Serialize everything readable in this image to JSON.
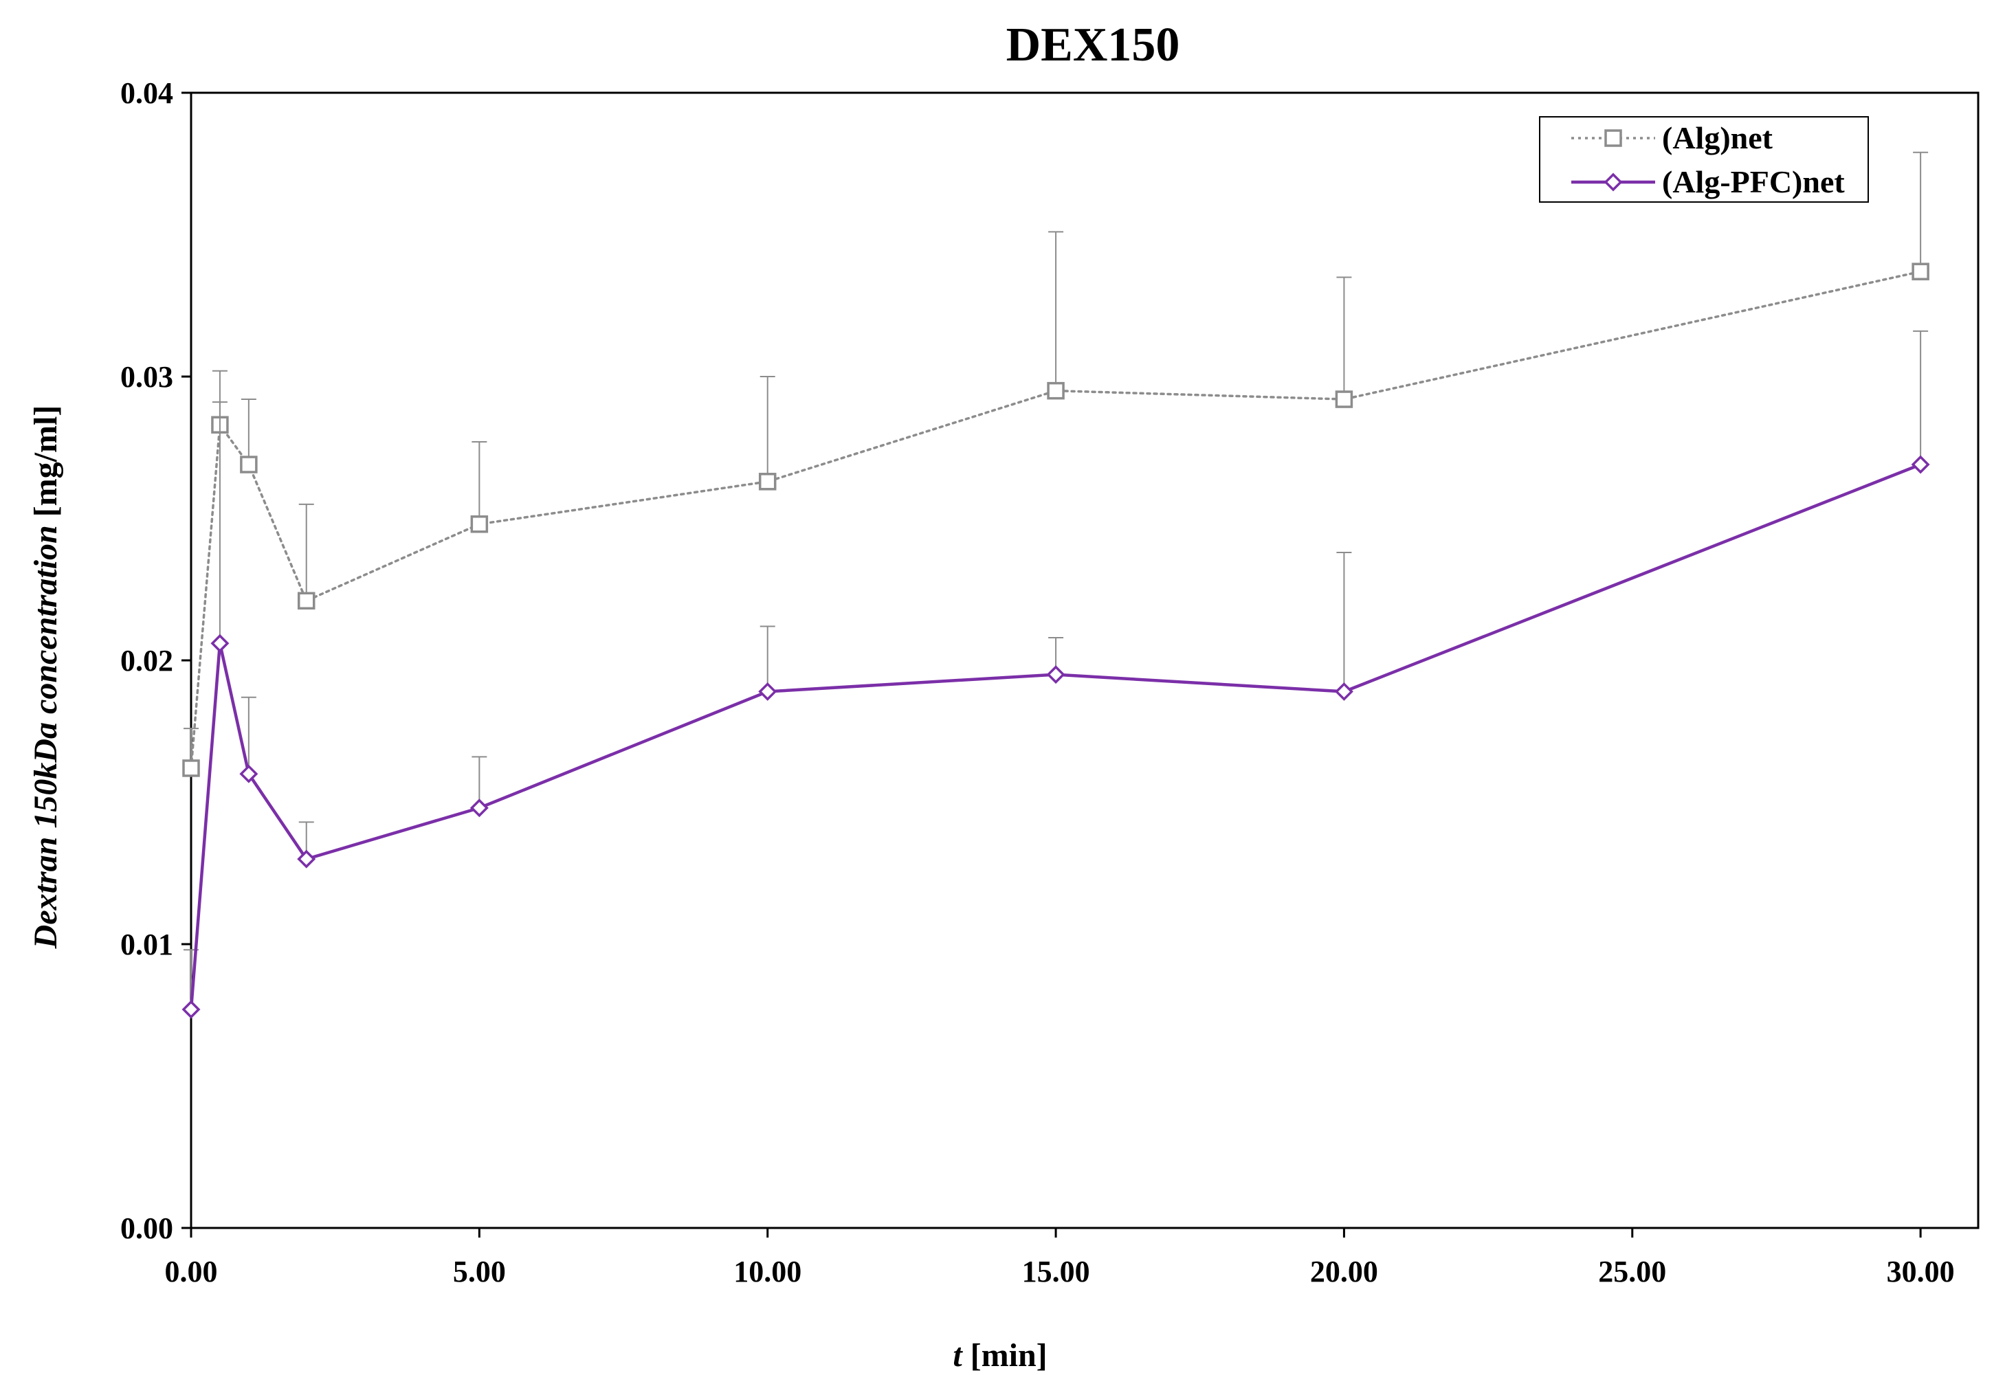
{
  "chart_data": {
    "type": "line",
    "title": "DEX150",
    "xlabel_italic": "t",
    "xlabel_rest": " [min]",
    "ylabel_italic": "Dextran 150kDa concentration",
    "ylabel_rest": " [mg/ml]",
    "xlim": [
      0,
      31
    ],
    "ylim": [
      0,
      0.04
    ],
    "x_ticks": [
      0,
      5,
      10,
      15,
      20,
      25,
      30
    ],
    "x_tick_labels": [
      "0.00",
      "5.00",
      "10.00",
      "15.00",
      "20.00",
      "25.00",
      "30.00"
    ],
    "y_ticks": [
      0,
      0.01,
      0.02,
      0.03,
      0.04
    ],
    "y_tick_labels": [
      "0.00",
      "0.01",
      "0.02",
      "0.03",
      "0.04"
    ],
    "grid": false,
    "legend_position": "top-right",
    "series": [
      {
        "name": "(Alg)net",
        "color": "#8c8c8c",
        "line_style": "dotted",
        "marker": "square",
        "x": [
          0,
          0.5,
          1,
          2,
          5,
          10,
          15,
          20,
          30
        ],
        "y": [
          0.0162,
          0.0283,
          0.0269,
          0.0221,
          0.0248,
          0.0263,
          0.0295,
          0.0292,
          0.0337
        ],
        "error_upper": [
          0.0176,
          0.0302,
          0.0292,
          0.0255,
          0.0277,
          0.03,
          0.0351,
          0.0335,
          0.0379
        ]
      },
      {
        "name": "(Alg-PFC)net",
        "color": "#7b2fa8",
        "line_style": "solid",
        "marker": "diamond",
        "x": [
          0,
          0.5,
          1,
          2,
          5,
          10,
          15,
          20,
          30
        ],
        "y": [
          0.0077,
          0.0206,
          0.016,
          0.013,
          0.0148,
          0.0189,
          0.0195,
          0.0189,
          0.0269
        ],
        "error_upper": [
          0.0098,
          0.0291,
          0.0187,
          0.0143,
          0.0166,
          0.0212,
          0.0208,
          0.0238,
          0.0316
        ]
      }
    ]
  }
}
